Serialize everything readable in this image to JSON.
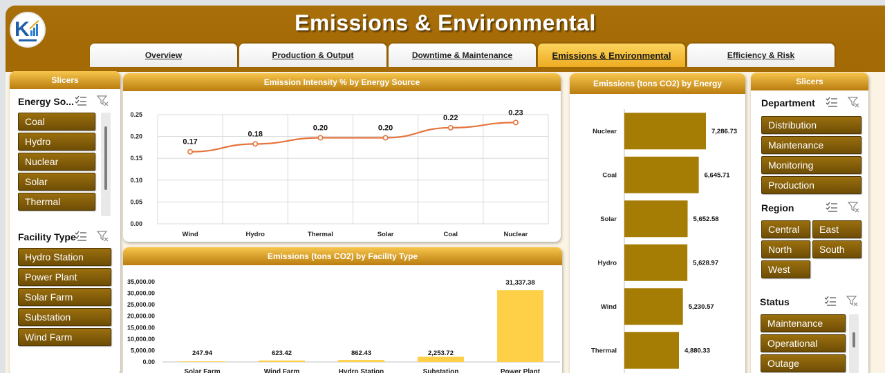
{
  "header": {
    "title": "Emissions & Environmental",
    "logo_icon": "kpi-logo-icon"
  },
  "tabs": [
    {
      "label": "Overview",
      "active": false
    },
    {
      "label": "Production & Output",
      "active": false
    },
    {
      "label": "Downtime & Maintenance",
      "active": false
    },
    {
      "label": "Emissions & Environmental",
      "active": true
    },
    {
      "label": "Efficiency & Risk",
      "active": false
    }
  ],
  "left_slicers": {
    "header": "Slicers",
    "energy_source": {
      "title": "Energy So...",
      "items": [
        "Coal",
        "Hydro",
        "Nuclear",
        "Solar",
        "Thermal"
      ]
    },
    "facility_type": {
      "title": "Facility Type",
      "items": [
        "Hydro Station",
        "Power Plant",
        "Solar Farm",
        "Substation",
        "Wind Farm"
      ]
    }
  },
  "right_slicers": {
    "header": "Slicers",
    "department": {
      "title": "Department",
      "items": [
        "Distribution",
        "Maintenance",
        "Monitoring",
        "Production"
      ]
    },
    "region": {
      "title": "Region",
      "items": [
        "Central",
        "East",
        "North",
        "South",
        "West"
      ]
    },
    "status": {
      "title": "Status",
      "items": [
        "Maintenance",
        "Operational",
        "Outage"
      ]
    }
  },
  "colors": {
    "brand_dark": "#a36a05",
    "gold_accent": "#f7c54c",
    "slicer_button": "#845e0a",
    "bar_gold": "#a57d05",
    "bar_yellow": "#fdd048",
    "line_orange": "#e5733c"
  },
  "chart_data": [
    {
      "type": "line",
      "title": "Emission Intensity % by Energy Source",
      "categories": [
        "Wind",
        "Hydro",
        "Thermal",
        "Solar",
        "Coal",
        "Nuclear"
      ],
      "values": [
        0.165,
        0.183,
        0.197,
        0.197,
        0.22,
        0.232
      ],
      "data_labels": [
        "0.17",
        "0.18",
        "0.20",
        "0.20",
        "0.22",
        "0.23"
      ],
      "ylim": [
        0,
        0.25
      ],
      "yticks": [
        "0.00",
        "0.05",
        "0.10",
        "0.15",
        "0.20",
        "0.25"
      ],
      "grid": true
    },
    {
      "type": "bar",
      "title": "Emissions (tons CO2) by Facility Type",
      "categories": [
        "Solar Farm",
        "Wind Farm",
        "Hydro Station",
        "Substation",
        "Power Plant"
      ],
      "values": [
        247.94,
        623.42,
        862.43,
        2253.72,
        31337.38
      ],
      "data_labels": [
        "247.94",
        "623.42",
        "862.43",
        "2,253.72",
        "31,337.38"
      ],
      "ylim": [
        0,
        35000
      ],
      "yticks": [
        "0.00",
        "5,000.00",
        "10,000.00",
        "15,000.00",
        "20,000.00",
        "25,000.00",
        "30,000.00",
        "35,000.00"
      ],
      "grid": false
    },
    {
      "type": "bar",
      "orientation": "horizontal",
      "title": "Emissions (tons CO2) by Energy",
      "categories": [
        "Nuclear",
        "Coal",
        "Solar",
        "Hydro",
        "Wind",
        "Thermal"
      ],
      "values": [
        7286.73,
        6645.71,
        5652.58,
        5628.97,
        5230.57,
        4880.33
      ],
      "data_labels": [
        "7,286.73",
        "6,645.71",
        "5,652.58",
        "5,628.97",
        "5,230.57",
        "4,880.33"
      ],
      "grid": false
    }
  ]
}
